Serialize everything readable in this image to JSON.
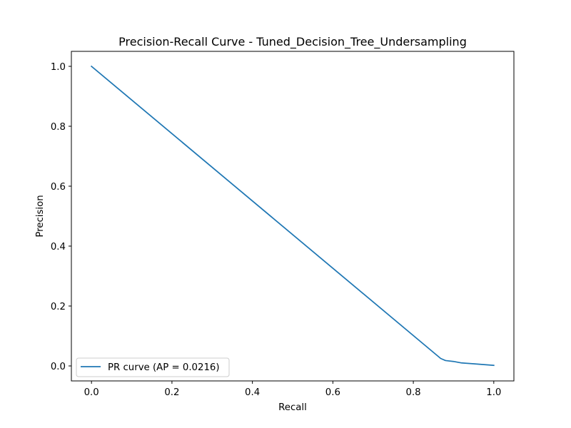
{
  "chart_data": {
    "type": "line",
    "title": "Precision-Recall Curve - Tuned_Decision_Tree_Undersampling",
    "xlabel": "Recall",
    "ylabel": "Precision",
    "xlim": [
      -0.05,
      1.05
    ],
    "ylim": [
      -0.05,
      1.05
    ],
    "xticks": [
      0.0,
      0.2,
      0.4,
      0.6,
      0.8,
      1.0
    ],
    "yticks": [
      0.0,
      0.2,
      0.4,
      0.6,
      0.8,
      1.0
    ],
    "xtick_labels": [
      "0.0",
      "0.2",
      "0.4",
      "0.6",
      "0.8",
      "1.0"
    ],
    "ytick_labels": [
      "0.0",
      "0.2",
      "0.4",
      "0.6",
      "0.8",
      "1.0"
    ],
    "grid": false,
    "legend_position": "lower-left",
    "series": [
      {
        "name": "PR curve (AP = 0.0216)",
        "color": "#1f77b4",
        "x": [
          0.0,
          0.868,
          0.873,
          0.88,
          0.9,
          0.92,
          0.95,
          1.0
        ],
        "y": [
          1.0,
          0.025,
          0.022,
          0.018,
          0.015,
          0.01,
          0.007,
          0.002
        ]
      }
    ]
  }
}
